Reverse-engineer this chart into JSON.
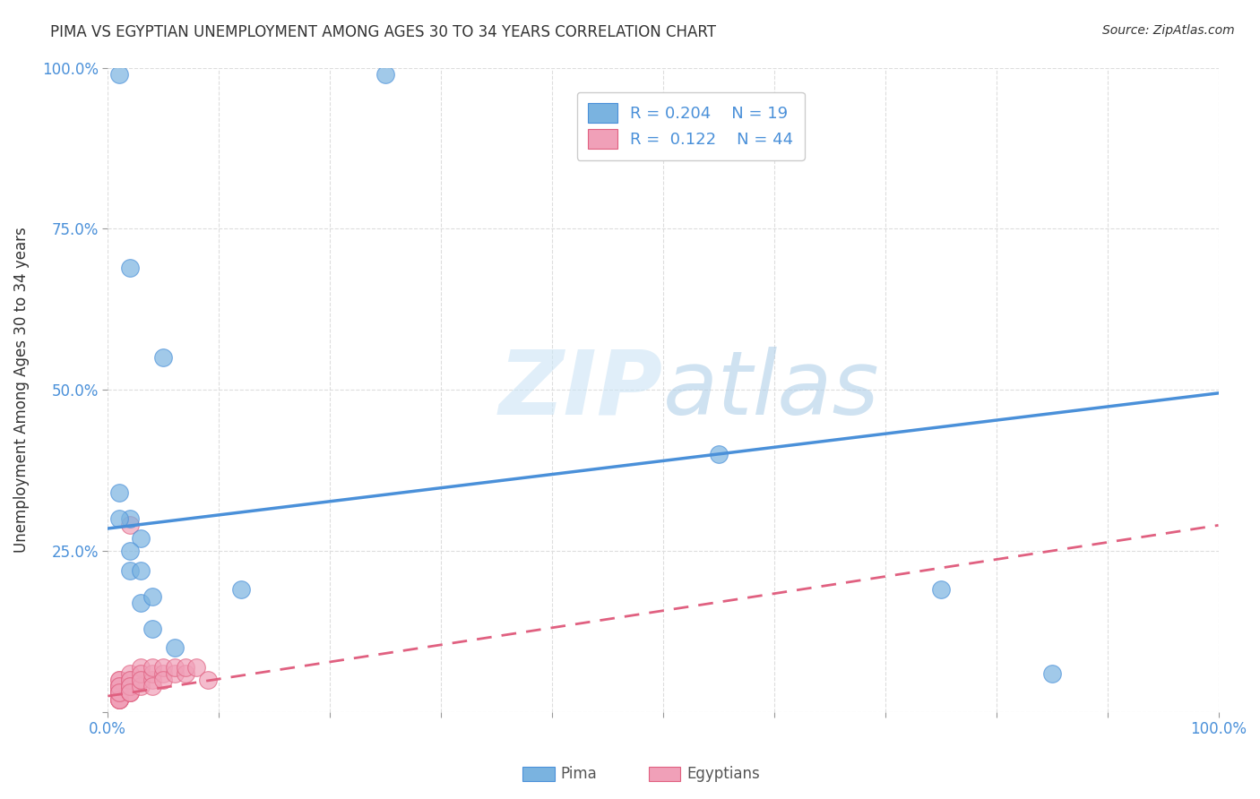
{
  "title": "PIMA VS EGYPTIAN UNEMPLOYMENT AMONG AGES 30 TO 34 YEARS CORRELATION CHART",
  "source": "Source: ZipAtlas.com",
  "xlabel": "",
  "ylabel": "Unemployment Among Ages 30 to 34 years",
  "xlim": [
    0.0,
    1.0
  ],
  "ylim": [
    0.0,
    1.0
  ],
  "xticks": [
    0.0,
    0.1,
    0.2,
    0.3,
    0.4,
    0.5,
    0.6,
    0.7,
    0.8,
    0.9,
    1.0
  ],
  "xticklabels": [
    "0.0%",
    "",
    "",
    "",
    "",
    "",
    "",
    "",
    "",
    "",
    "100.0%"
  ],
  "yticks": [
    0.0,
    0.25,
    0.5,
    0.75,
    1.0
  ],
  "yticklabels": [
    "",
    "25.0%",
    "50.0%",
    "75.0%",
    "100.0%"
  ],
  "background_color": "#ffffff",
  "grid_color": "#dddddd",
  "pima_color": "#7ab3e0",
  "pima_color_dark": "#4a90d9",
  "egyptians_color": "#f0a0b8",
  "egyptians_color_dark": "#e06080",
  "pima_R": "0.204",
  "pima_N": "19",
  "egyptians_R": "0.122",
  "egyptians_N": "44",
  "pima_scatter_x": [
    0.02,
    0.06,
    0.02,
    0.02,
    0.03,
    0.04,
    0.04,
    0.05,
    0.03,
    0.03,
    0.02,
    0.01,
    0.01,
    0.12,
    0.55,
    0.75,
    0.85,
    0.25,
    0.01
  ],
  "pima_scatter_y": [
    0.69,
    0.1,
    0.3,
    0.22,
    0.17,
    0.13,
    0.18,
    0.55,
    0.27,
    0.22,
    0.25,
    0.99,
    0.34,
    0.19,
    0.4,
    0.19,
    0.06,
    0.99,
    0.3
  ],
  "egyptians_scatter_x": [
    0.01,
    0.01,
    0.01,
    0.01,
    0.01,
    0.01,
    0.01,
    0.01,
    0.01,
    0.01,
    0.01,
    0.01,
    0.01,
    0.01,
    0.01,
    0.01,
    0.02,
    0.02,
    0.02,
    0.02,
    0.02,
    0.02,
    0.02,
    0.02,
    0.02,
    0.02,
    0.03,
    0.03,
    0.03,
    0.03,
    0.03,
    0.04,
    0.04,
    0.04,
    0.04,
    0.05,
    0.05,
    0.05,
    0.06,
    0.06,
    0.07,
    0.07,
    0.08,
    0.09
  ],
  "egyptians_scatter_y": [
    0.03,
    0.02,
    0.03,
    0.04,
    0.02,
    0.03,
    0.04,
    0.05,
    0.02,
    0.03,
    0.04,
    0.05,
    0.03,
    0.02,
    0.04,
    0.03,
    0.03,
    0.04,
    0.05,
    0.06,
    0.03,
    0.04,
    0.05,
    0.04,
    0.03,
    0.29,
    0.05,
    0.04,
    0.07,
    0.06,
    0.05,
    0.05,
    0.06,
    0.07,
    0.04,
    0.06,
    0.07,
    0.05,
    0.06,
    0.07,
    0.06,
    0.07,
    0.07,
    0.05
  ],
  "pima_line_x": [
    0.0,
    1.0
  ],
  "pima_line_y_start": 0.285,
  "pima_line_y_end": 0.495,
  "egyptians_line_x": [
    0.0,
    1.0
  ],
  "egyptians_line_y_start": 0.025,
  "egyptians_line_y_end": 0.29,
  "legend_pima": "Pima",
  "legend_egyptians": "Egyptians"
}
